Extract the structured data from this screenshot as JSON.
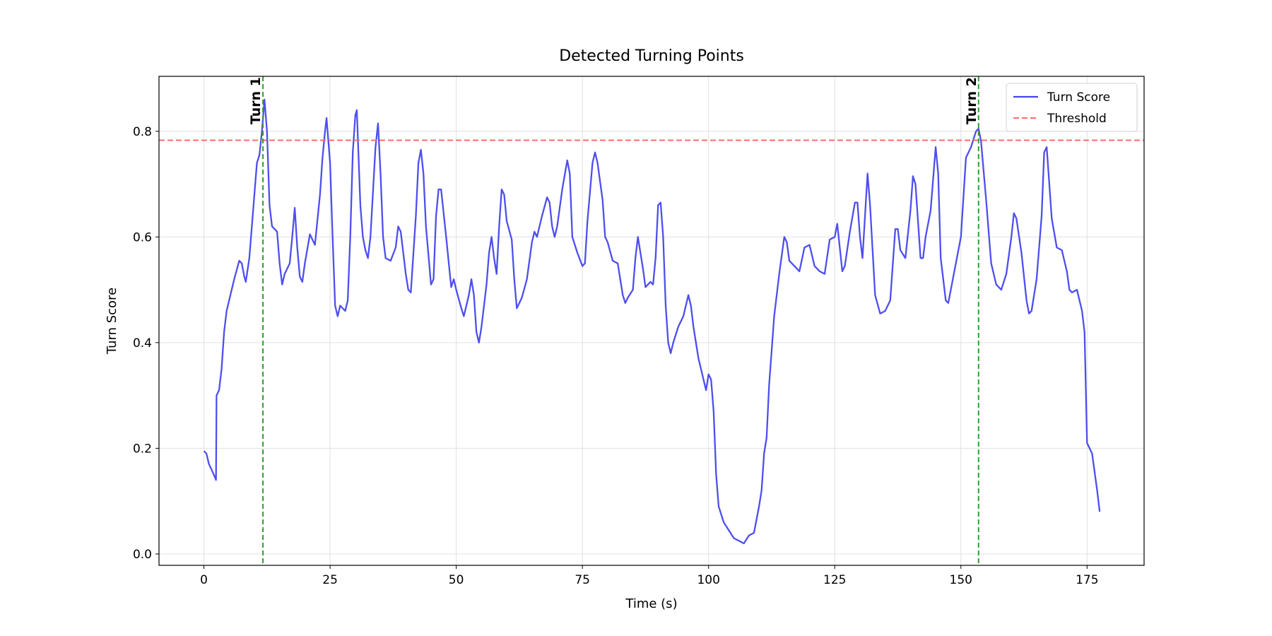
{
  "chart_data": {
    "type": "line",
    "title": "Detected Turning Points",
    "x_label": "Time (s)",
    "y_label": "Turn Score",
    "x": [
      0,
      0.5,
      1,
      1.5,
      2.2,
      2.4,
      2.5,
      3,
      3.5,
      4,
      4.5,
      5,
      6,
      7,
      7.5,
      8,
      8.3,
      9,
      10,
      10.5,
      11,
      11.5,
      12,
      12.5,
      13,
      13.5,
      14,
      14.5,
      15,
      15.5,
      16,
      17,
      17.5,
      18,
      18.5,
      19,
      19.5,
      20,
      21,
      22,
      23,
      23.5,
      24,
      24.3,
      25,
      25.5,
      26,
      26.5,
      27,
      27.5,
      28,
      28.5,
      29,
      29.5,
      30,
      30.3,
      31,
      31.5,
      32,
      32.5,
      33,
      34,
      34.5,
      35,
      35.5,
      36,
      37,
      38,
      38.5,
      39,
      40,
      40.5,
      41,
      42,
      42.5,
      43,
      43.5,
      44,
      45,
      45.5,
      46,
      46.5,
      47,
      48,
      49,
      49.5,
      50,
      51,
      51.5,
      52,
      52.5,
      53,
      53.5,
      54,
      54.5,
      55,
      56,
      56.5,
      57,
      57.5,
      58,
      58.5,
      59,
      59.5,
      60,
      61,
      61.5,
      62,
      63,
      64,
      65,
      65.5,
      66,
      67,
      68,
      68.5,
      69,
      69.5,
      70,
      71,
      72,
      72.5,
      73,
      74,
      75,
      75.5,
      76,
      77,
      77.5,
      78,
      79,
      79.5,
      80,
      81,
      82,
      83,
      83.5,
      84,
      85,
      85.5,
      86,
      87,
      87.5,
      88,
      88.5,
      89,
      89.5,
      90,
      90.5,
      91,
      91.5,
      92,
      92.5,
      93,
      94,
      95,
      96,
      96.5,
      97,
      98,
      99,
      99.5,
      100,
      100.5,
      101,
      101.5,
      102,
      103,
      104,
      105,
      106,
      107,
      108,
      109,
      109.5,
      110,
      110.5,
      111,
      111.5,
      112,
      113,
      114,
      115,
      115.5,
      116,
      117,
      118,
      119,
      120,
      121,
      122,
      123,
      124,
      125,
      125.5,
      126,
      126.5,
      127,
      128,
      129,
      129.5,
      130,
      130.5,
      131,
      131.5,
      132,
      133,
      134,
      135,
      136,
      137,
      137.5,
      138,
      139,
      140,
      140.5,
      141,
      142,
      142.5,
      143,
      144,
      145,
      145.5,
      146,
      147,
      147.5,
      148,
      149,
      150,
      151,
      152,
      153,
      153.5,
      154,
      155,
      156,
      157,
      158,
      159,
      160,
      160.5,
      161,
      162,
      163,
      163.5,
      164,
      165,
      166,
      166.5,
      167,
      168,
      169,
      170,
      171,
      171.5,
      172,
      173,
      174,
      174.5,
      175,
      176,
      177,
      177.5
    ],
    "series": [
      {
        "name": "Turn Score",
        "color": "#4545ee",
        "values": [
          0.195,
          0.19,
          0.17,
          0.16,
          0.145,
          0.14,
          0.3,
          0.31,
          0.35,
          0.42,
          0.46,
          0.48,
          0.52,
          0.555,
          0.55,
          0.525,
          0.515,
          0.56,
          0.68,
          0.74,
          0.755,
          0.8,
          0.86,
          0.8,
          0.66,
          0.62,
          0.615,
          0.61,
          0.55,
          0.51,
          0.53,
          0.55,
          0.6,
          0.655,
          0.58,
          0.525,
          0.515,
          0.55,
          0.605,
          0.585,
          0.68,
          0.75,
          0.8,
          0.825,
          0.74,
          0.6,
          0.47,
          0.45,
          0.47,
          0.465,
          0.46,
          0.48,
          0.6,
          0.76,
          0.83,
          0.84,
          0.66,
          0.6,
          0.575,
          0.56,
          0.6,
          0.77,
          0.815,
          0.72,
          0.6,
          0.56,
          0.555,
          0.58,
          0.62,
          0.61,
          0.53,
          0.5,
          0.495,
          0.64,
          0.74,
          0.765,
          0.72,
          0.62,
          0.51,
          0.52,
          0.64,
          0.69,
          0.69,
          0.6,
          0.505,
          0.52,
          0.5,
          0.465,
          0.45,
          0.47,
          0.49,
          0.52,
          0.49,
          0.42,
          0.4,
          0.43,
          0.51,
          0.57,
          0.6,
          0.56,
          0.53,
          0.62,
          0.69,
          0.68,
          0.63,
          0.595,
          0.52,
          0.465,
          0.485,
          0.52,
          0.59,
          0.61,
          0.6,
          0.64,
          0.675,
          0.665,
          0.62,
          0.6,
          0.62,
          0.69,
          0.745,
          0.72,
          0.6,
          0.57,
          0.545,
          0.55,
          0.63,
          0.74,
          0.76,
          0.74,
          0.67,
          0.6,
          0.59,
          0.555,
          0.55,
          0.49,
          0.475,
          0.485,
          0.5,
          0.56,
          0.6,
          0.54,
          0.505,
          0.51,
          0.515,
          0.51,
          0.56,
          0.66,
          0.665,
          0.6,
          0.47,
          0.4,
          0.38,
          0.4,
          0.43,
          0.45,
          0.49,
          0.47,
          0.43,
          0.37,
          0.33,
          0.31,
          0.34,
          0.33,
          0.27,
          0.15,
          0.09,
          0.06,
          0.045,
          0.03,
          0.025,
          0.02,
          0.035,
          0.04,
          0.065,
          0.09,
          0.12,
          0.19,
          0.22,
          0.32,
          0.45,
          0.53,
          0.6,
          0.59,
          0.555,
          0.545,
          0.535,
          0.58,
          0.585,
          0.545,
          0.535,
          0.53,
          0.595,
          0.6,
          0.625,
          0.58,
          0.535,
          0.545,
          0.61,
          0.665,
          0.665,
          0.6,
          0.56,
          0.64,
          0.72,
          0.66,
          0.49,
          0.455,
          0.46,
          0.48,
          0.615,
          0.615,
          0.575,
          0.56,
          0.65,
          0.715,
          0.7,
          0.56,
          0.56,
          0.6,
          0.65,
          0.77,
          0.72,
          0.56,
          0.48,
          0.475,
          0.5,
          0.55,
          0.6,
          0.75,
          0.77,
          0.8,
          0.805,
          0.78,
          0.67,
          0.55,
          0.51,
          0.5,
          0.53,
          0.6,
          0.645,
          0.635,
          0.57,
          0.48,
          0.455,
          0.46,
          0.52,
          0.64,
          0.76,
          0.77,
          0.635,
          0.58,
          0.575,
          0.535,
          0.5,
          0.495,
          0.5,
          0.46,
          0.42,
          0.21,
          0.19,
          0.12,
          0.08
        ]
      }
    ],
    "threshold": {
      "name": "Threshold",
      "value": 0.783,
      "color": "#ff6b6b"
    },
    "turning_points": {
      "color": "#2ca02c",
      "points": [
        {
          "label": "Turn 1",
          "x": 11.7
        },
        {
          "label": "Turn 2",
          "x": 153.5
        }
      ]
    },
    "xlim": [
      -8.9,
      186.3
    ],
    "ylim": [
      -0.0215,
      0.904
    ],
    "xticks": [
      0,
      25,
      50,
      75,
      100,
      125,
      150,
      175
    ],
    "yticks": [
      {
        "value": 0,
        "label": "0.0"
      },
      0.2,
      0.4,
      0.6,
      0.8
    ],
    "grid": true,
    "legend": "upper right"
  }
}
